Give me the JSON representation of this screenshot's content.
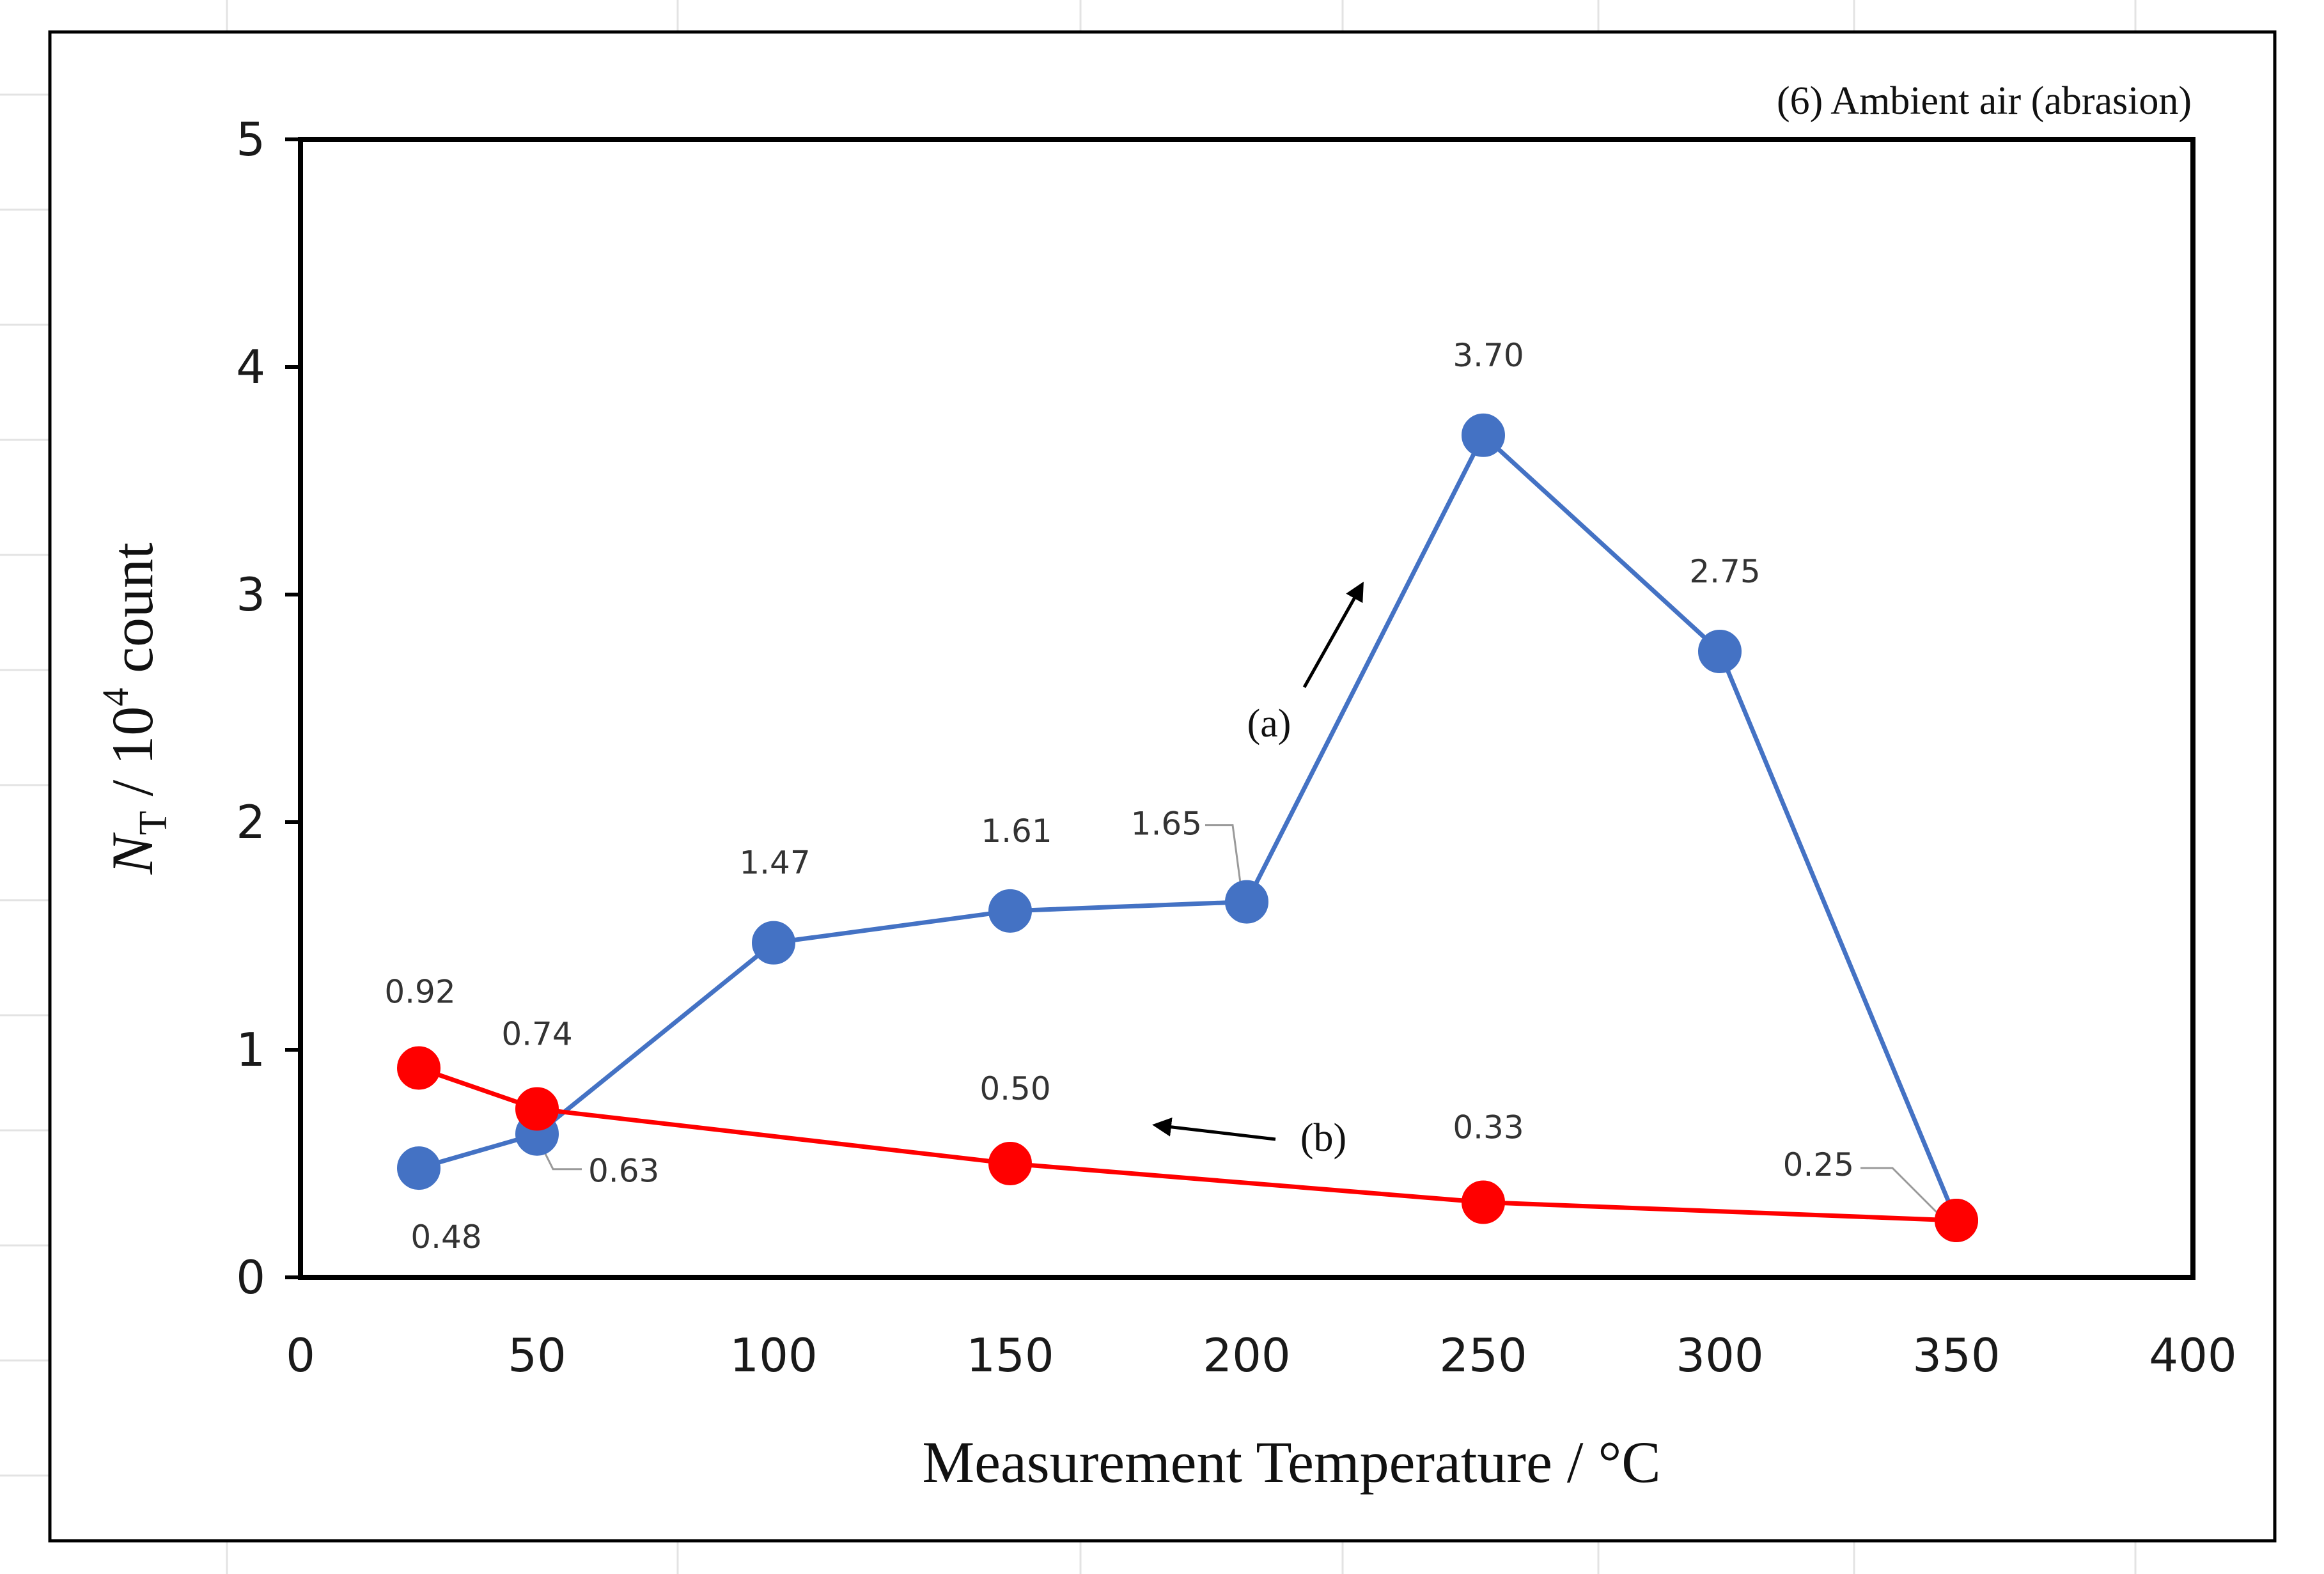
{
  "chart_data": {
    "type": "line",
    "title": "(6) Ambient air (abrasion)",
    "xlabel": "Measurement Temperature / °C",
    "ylabel": {
      "symbol": "N",
      "subscript": "T",
      "text": " / 10",
      "superscript": "4",
      "unit": " count"
    },
    "xlim": [
      0,
      400
    ],
    "ylim": [
      0,
      5
    ],
    "x_ticks": [
      "0",
      "50",
      "100",
      "150",
      "200",
      "250",
      "300",
      "350",
      "400"
    ],
    "y_ticks": [
      "0",
      "1",
      "2",
      "3",
      "4",
      "5"
    ],
    "grid": false,
    "series": [
      {
        "name": "(a)",
        "color": "#4472C4",
        "x": [
          25,
          50,
          100,
          150,
          200,
          250,
          300,
          350
        ],
        "y": [
          0.48,
          0.63,
          1.47,
          1.61,
          1.65,
          3.7,
          2.75,
          0.25
        ],
        "labels": [
          "0.48",
          "0.63",
          "1.47",
          "1.61",
          "1.65",
          "3.70",
          "2.75",
          ""
        ]
      },
      {
        "name": "(b)",
        "color": "#FF0000",
        "x": [
          25,
          50,
          150,
          250,
          350
        ],
        "y": [
          0.92,
          0.74,
          0.5,
          0.33,
          0.25
        ],
        "labels": [
          "0.92",
          "0.74",
          "0.50",
          "0.33",
          "0.25"
        ]
      }
    ],
    "annotations": [
      "(a)",
      "(b)"
    ]
  }
}
